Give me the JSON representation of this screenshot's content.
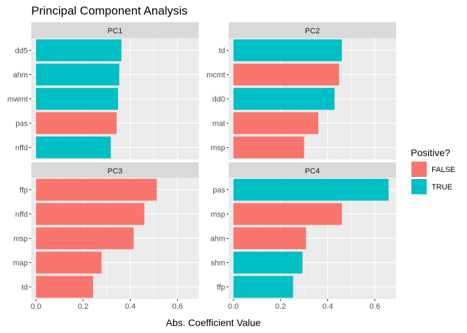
{
  "chart_data": {
    "type": "bar",
    "orientation": "horizontal",
    "title": "Principal Component Analysis",
    "xlabel": "Abs. Coefficient Value",
    "ylabel": "",
    "xlim": [
      -0.02,
      0.69
    ],
    "x_ticks": [
      "0.0",
      "0.2",
      "0.4",
      "0.6"
    ],
    "x_tick_values": [
      0,
      0.2,
      0.4,
      0.6
    ],
    "grid": true,
    "legend": {
      "title": "Positive?",
      "placement": "right",
      "entries": [
        {
          "label": "FALSE",
          "color": "#F8766D"
        },
        {
          "label": "TRUE",
          "color": "#00BFC4"
        }
      ]
    },
    "panels": [
      {
        "label": "PC1",
        "bars": [
          {
            "category": "dd5",
            "value": 0.362,
            "positive": "TRUE"
          },
          {
            "category": "ahm",
            "value": 0.353,
            "positive": "TRUE"
          },
          {
            "category": "mwmt",
            "value": 0.348,
            "positive": "TRUE"
          },
          {
            "category": "pas",
            "value": 0.342,
            "positive": "FALSE"
          },
          {
            "category": "nffd",
            "value": 0.317,
            "positive": "TRUE"
          }
        ]
      },
      {
        "label": "PC2",
        "bars": [
          {
            "category": "td",
            "value": 0.46,
            "positive": "TRUE"
          },
          {
            "category": "mcmt",
            "value": 0.448,
            "positive": "FALSE"
          },
          {
            "category": "dd0",
            "value": 0.429,
            "positive": "TRUE"
          },
          {
            "category": "mat",
            "value": 0.36,
            "positive": "FALSE"
          },
          {
            "category": "msp",
            "value": 0.3,
            "positive": "FALSE"
          }
        ]
      },
      {
        "label": "PC3",
        "bars": [
          {
            "category": "ffp",
            "value": 0.512,
            "positive": "FALSE"
          },
          {
            "category": "nffd",
            "value": 0.459,
            "positive": "FALSE"
          },
          {
            "category": "msp",
            "value": 0.414,
            "positive": "FALSE"
          },
          {
            "category": "map",
            "value": 0.278,
            "positive": "FALSE"
          },
          {
            "category": "td",
            "value": 0.242,
            "positive": "FALSE"
          }
        ]
      },
      {
        "label": "PC4",
        "bars": [
          {
            "category": "pas",
            "value": 0.658,
            "positive": "TRUE"
          },
          {
            "category": "msp",
            "value": 0.46,
            "positive": "FALSE"
          },
          {
            "category": "ahm",
            "value": 0.308,
            "positive": "FALSE"
          },
          {
            "category": "shm",
            "value": 0.293,
            "positive": "TRUE"
          },
          {
            "category": "ffp",
            "value": 0.253,
            "positive": "TRUE"
          }
        ]
      }
    ]
  }
}
